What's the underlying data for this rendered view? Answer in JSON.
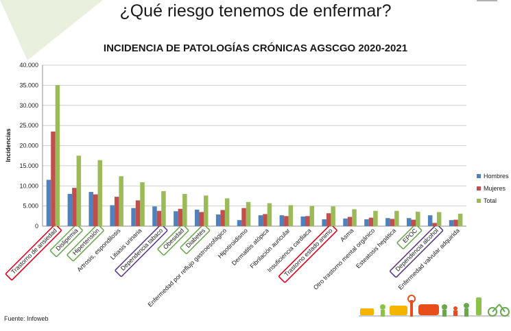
{
  "slide": {
    "title": "¿Qué riesgo tenemos de enfermar?",
    "source": "Fuente: Infoweb"
  },
  "colors": {
    "hombres": "#4f81bd",
    "mujeres": "#c0504d",
    "total": "#9bbb59",
    "highlight_red": "#e3001b",
    "highlight_green": "#6aa84f",
    "highlight_purple": "#5b3a8c",
    "gridline": "#bfbfbf"
  },
  "chart_data": {
    "type": "bar",
    "title": "INCIDENCIA DE PATOLOGÍAS CRÓNICAS AGSCGO 2020-2021",
    "ylabel": "Incidencias",
    "xlabel": "",
    "ylim": [
      0,
      40000
    ],
    "yticks": [
      "0",
      "5.000",
      "10.000",
      "15.000",
      "20.000",
      "25.000",
      "30.000",
      "35.000",
      "40.000"
    ],
    "grid": true,
    "legend_position": "right",
    "categories": [
      "Trastorno de ansiedad",
      "Dislipemia",
      "Hipertensión",
      "Artrosis, espondilosis",
      "Litiasis urinaria",
      "Dependencia tabaco",
      "Obesidad",
      "Diabetes",
      "Enfermedad por reflujo gastroesofágico",
      "Hipotiroidismo",
      "Dermatitis atópica",
      "Fibrilación auricular",
      "Insuficiencia cardiaca",
      "Trastorno estado animo",
      "Asma",
      "Otro trastorno mental orgánico",
      "Esteatosis hepática",
      "EPOC",
      "Dependencia alcohol",
      "Enfermedad valvular adquirida"
    ],
    "series": [
      {
        "name": "Hombres",
        "values": [
          11500,
          8000,
          8500,
          5200,
          4500,
          4900,
          3700,
          4100,
          2900,
          1500,
          2700,
          2700,
          2400,
          1700,
          1900,
          1700,
          2000,
          2000,
          2700,
          1500
        ]
      },
      {
        "name": "Mujeres",
        "values": [
          23500,
          9500,
          7900,
          7300,
          6400,
          3800,
          4300,
          3500,
          4000,
          4500,
          3000,
          2500,
          2500,
          3200,
          2300,
          2100,
          1800,
          1600,
          800,
          1600
        ]
      },
      {
        "name": "Total",
        "values": [
          35000,
          17500,
          16400,
          12400,
          10900,
          8700,
          8000,
          7600,
          6900,
          6000,
          5700,
          5200,
          5000,
          4900,
          4200,
          3800,
          3800,
          3600,
          3500,
          3100
        ]
      }
    ],
    "highlights": [
      {
        "category_index": 0,
        "color": "red"
      },
      {
        "category_index": 1,
        "color": "green"
      },
      {
        "category_index": 2,
        "color": "green"
      },
      {
        "category_index": 5,
        "color": "purple"
      },
      {
        "category_index": 6,
        "color": "green"
      },
      {
        "category_index": 7,
        "color": "green"
      },
      {
        "category_index": 13,
        "color": "red"
      },
      {
        "category_index": 17,
        "color": "green"
      },
      {
        "category_index": 18,
        "color": "purple"
      }
    ]
  }
}
